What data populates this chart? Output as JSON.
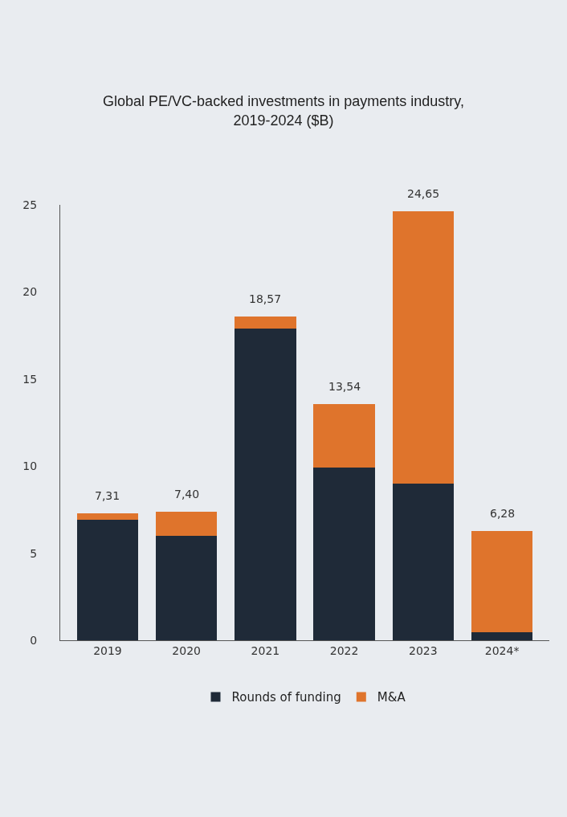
{
  "chart_data": {
    "type": "bar",
    "title": "Global PE/VC-backed investments in payments industry,\n2019-2024 ($B)",
    "categories": [
      "2019",
      "2020",
      "2021",
      "2022",
      "2023",
      "2024*"
    ],
    "stacked": true,
    "series": [
      {
        "name": "Rounds of funding",
        "color": "#1f2a38",
        "values": [
          6.9,
          6.0,
          17.9,
          9.9,
          9.0,
          0.45
        ]
      },
      {
        "name": "M&A",
        "color": "#df742c",
        "values": [
          0.41,
          1.4,
          0.67,
          3.64,
          15.65,
          5.83
        ]
      }
    ],
    "totals": [
      "7,31",
      "7,40",
      "18,57",
      "13,54",
      "24,65",
      "6,28"
    ],
    "ylim": [
      0,
      25
    ],
    "yticks": [
      0,
      5,
      10,
      15,
      20,
      25
    ],
    "grid": false,
    "legend": "bottom"
  }
}
